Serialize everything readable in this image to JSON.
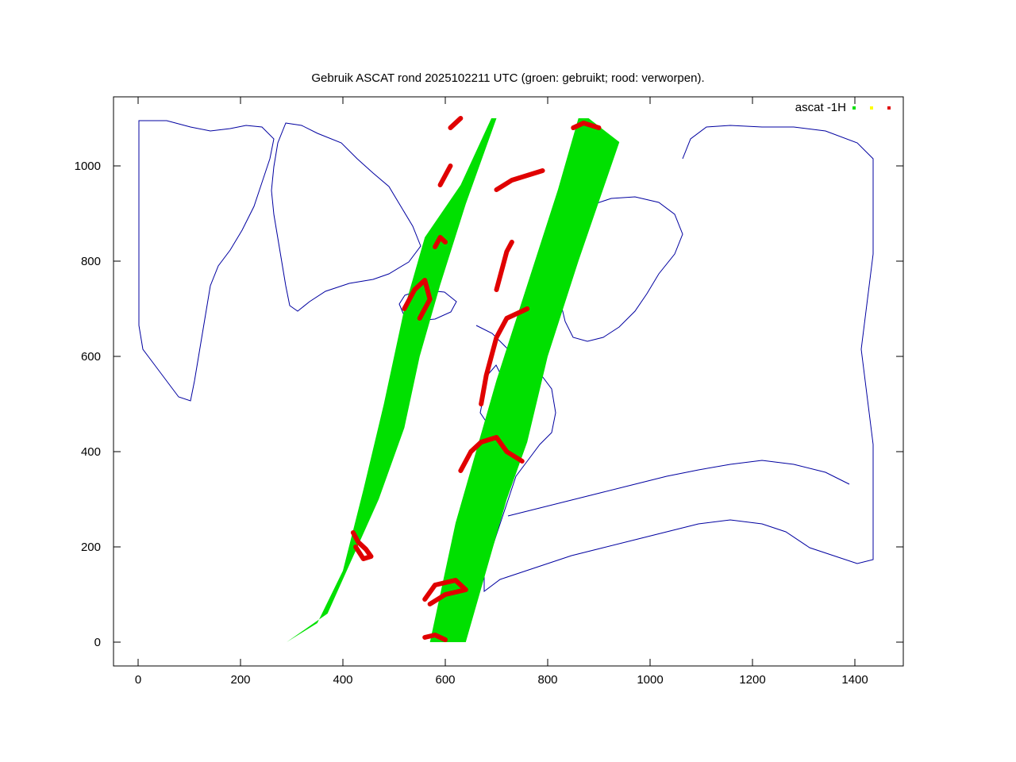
{
  "chart_data": {
    "type": "scatter",
    "title": "Gebruik ASCAT rond 2025102211 UTC (groen: gebruikt; rood: verworpen).",
    "xlabel": "",
    "ylabel": "",
    "xlim": [
      -50,
      1500
    ],
    "ylim": [
      -50,
      1120
    ],
    "x_ticks": [
      0,
      200,
      400,
      600,
      800,
      1000,
      1200,
      1400
    ],
    "y_ticks": [
      0,
      200,
      400,
      600,
      800,
      1000
    ],
    "grid": false,
    "legend": {
      "position": "top-right",
      "label": "ascat -1H"
    },
    "colors": {
      "used": "#00e000",
      "other": "#ffff00",
      "rejected": "#e00000",
      "coastline": "#0000a0"
    },
    "swaths": [
      {
        "name": "",
        "status": "used",
        "polygon": [
          [
            290,
            0
          ],
          [
            370,
            60
          ],
          [
            420,
            180
          ],
          [
            470,
            300
          ],
          [
            520,
            450
          ],
          [
            550,
            600
          ],
          [
            590,
            750
          ],
          [
            640,
            920
          ],
          [
            700,
            1100
          ],
          [
            690,
            1100
          ],
          [
            630,
            960
          ],
          [
            560,
            850
          ],
          [
            520,
            700
          ],
          [
            480,
            500
          ],
          [
            440,
            320
          ],
          [
            400,
            150
          ],
          [
            350,
            40
          ]
        ]
      },
      {
        "name": "",
        "status": "used",
        "polygon": [
          [
            570,
            0
          ],
          [
            640,
            0
          ],
          [
            680,
            150
          ],
          [
            720,
            300
          ],
          [
            760,
            420
          ],
          [
            800,
            600
          ],
          [
            860,
            800
          ],
          [
            940,
            1050
          ],
          [
            880,
            1100
          ],
          [
            860,
            1100
          ],
          [
            820,
            950
          ],
          [
            760,
            750
          ],
          [
            700,
            550
          ],
          [
            660,
            400
          ],
          [
            620,
            250
          ],
          [
            590,
            100
          ]
        ]
      }
    ],
    "rejected_regions": [
      {
        "points": [
          [
            420,
            230
          ],
          [
            430,
            210
          ],
          [
            445,
            195
          ],
          [
            455,
            180
          ],
          [
            440,
            175
          ],
          [
            425,
            200
          ]
        ]
      },
      {
        "points": [
          [
            560,
            90
          ],
          [
            580,
            120
          ],
          [
            620,
            130
          ],
          [
            640,
            110
          ],
          [
            600,
            100
          ],
          [
            570,
            80
          ]
        ]
      },
      {
        "points": [
          [
            560,
            10
          ],
          [
            580,
            15
          ],
          [
            600,
            5
          ]
        ]
      },
      {
        "points": [
          [
            520,
            700
          ],
          [
            540,
            740
          ],
          [
            560,
            760
          ],
          [
            570,
            720
          ],
          [
            550,
            680
          ]
        ]
      },
      {
        "points": [
          [
            580,
            830
          ],
          [
            590,
            850
          ],
          [
            600,
            840
          ]
        ]
      },
      {
        "points": [
          [
            590,
            960
          ],
          [
            600,
            980
          ],
          [
            610,
            1000
          ]
        ]
      },
      {
        "points": [
          [
            610,
            1080
          ],
          [
            620,
            1090
          ],
          [
            630,
            1100
          ]
        ]
      },
      {
        "points": [
          [
            630,
            360
          ],
          [
            650,
            400
          ],
          [
            670,
            420
          ],
          [
            700,
            430
          ],
          [
            720,
            400
          ],
          [
            750,
            380
          ]
        ]
      },
      {
        "points": [
          [
            670,
            500
          ],
          [
            680,
            560
          ],
          [
            690,
            600
          ],
          [
            700,
            640
          ],
          [
            720,
            680
          ],
          [
            760,
            700
          ]
        ]
      },
      {
        "points": [
          [
            700,
            740
          ],
          [
            710,
            780
          ],
          [
            720,
            820
          ],
          [
            730,
            840
          ]
        ]
      },
      {
        "points": [
          [
            700,
            950
          ],
          [
            730,
            970
          ],
          [
            760,
            980
          ],
          [
            790,
            990
          ]
        ]
      },
      {
        "points": [
          [
            850,
            1080
          ],
          [
            870,
            1090
          ],
          [
            900,
            1080
          ]
        ]
      }
    ]
  }
}
